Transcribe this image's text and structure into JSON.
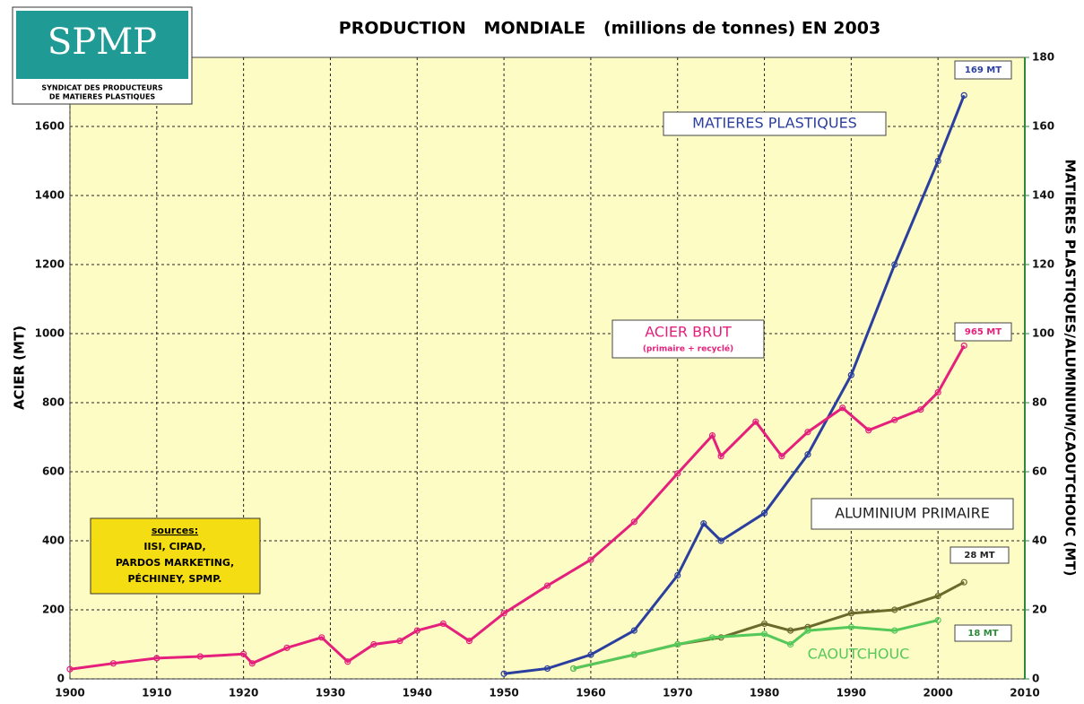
{
  "chart_data": {
    "type": "line",
    "title": "PRODUCTION   MONDIALE   (millions de tonnes) EN 2003",
    "y_label": "ACIER (MT)",
    "y2_label": "MATIERES PLASTIQUES/ALUMINIUM/CAOUTCHOUC (MT)",
    "logo": {
      "mark": "SPMP",
      "line1": "SYNDICAT DES PRODUCTEURS",
      "line2": "DE MATIERES PLASTIQUES"
    },
    "sources": [
      "sources:",
      "IISI, CIPAD,",
      "PARDOS MARKETING,",
      "PÉCHINEY, SPMP."
    ],
    "xlim": [
      1900,
      2010
    ],
    "xticks": [
      1900,
      1910,
      1920,
      1930,
      1940,
      1950,
      1960,
      1970,
      1980,
      1990,
      2000,
      2010
    ],
    "ylim": [
      0,
      1800
    ],
    "yticks": [
      0,
      200,
      400,
      600,
      800,
      1000,
      1200,
      1400,
      1600
    ],
    "y2lim": [
      0,
      180
    ],
    "y2ticks": [
      0,
      20,
      40,
      60,
      80,
      100,
      120,
      140,
      160,
      180
    ],
    "grid": true,
    "background": "#fdfcc4",
    "series": [
      {
        "name": "MATIERES PLASTIQUES",
        "color": "#2b3f9e",
        "axis": "y2",
        "end_label": "169 MT",
        "x": [
          1950,
          1955,
          1960,
          1965,
          1970,
          1973,
          1975,
          1980,
          1985,
          1990,
          1995,
          2000,
          2003
        ],
        "values": [
          1.5,
          3,
          7,
          14,
          30,
          45,
          40,
          48,
          65,
          88,
          120,
          150,
          169
        ]
      },
      {
        "name": "ACIER BRUT",
        "subtitle": "(primaire + recyclé)",
        "color": "#e4207c",
        "end_label": "965 MT",
        "x": [
          1900,
          1905,
          1910,
          1915,
          1920,
          1921,
          1925,
          1929,
          1932,
          1935,
          1938,
          1940,
          1943,
          1946,
          1950,
          1955,
          1960,
          1965,
          1970,
          1974,
          1975,
          1979,
          1982,
          1985,
          1989,
          1992,
          1995,
          1998,
          2000,
          2003
        ],
        "values": [
          28,
          45,
          60,
          65,
          72,
          45,
          90,
          120,
          50,
          100,
          110,
          140,
          160,
          110,
          190,
          270,
          345,
          455,
          595,
          705,
          645,
          745,
          645,
          715,
          785,
          720,
          750,
          780,
          830,
          965
        ]
      },
      {
        "name": "ALUMINIUM PRIMAIRE",
        "color": "#6b6a2c",
        "axis": "y2",
        "end_label": "28 MT",
        "x": [
          1958,
          1965,
          1970,
          1975,
          1980,
          1983,
          1985,
          1990,
          1995,
          2000,
          2003
        ],
        "values": [
          3,
          7,
          10,
          12,
          16,
          14,
          15,
          19,
          20,
          24,
          28
        ]
      },
      {
        "name": "CAOUTCHOUC",
        "color": "#55c85a",
        "axis": "y2",
        "end_label": "18 MT",
        "x": [
          1958,
          1965,
          1970,
          1974,
          1980,
          1983,
          1985,
          1990,
          1995,
          2000
        ],
        "values": [
          3,
          7,
          10,
          12,
          13,
          10,
          14,
          15,
          14,
          17
        ]
      }
    ]
  }
}
